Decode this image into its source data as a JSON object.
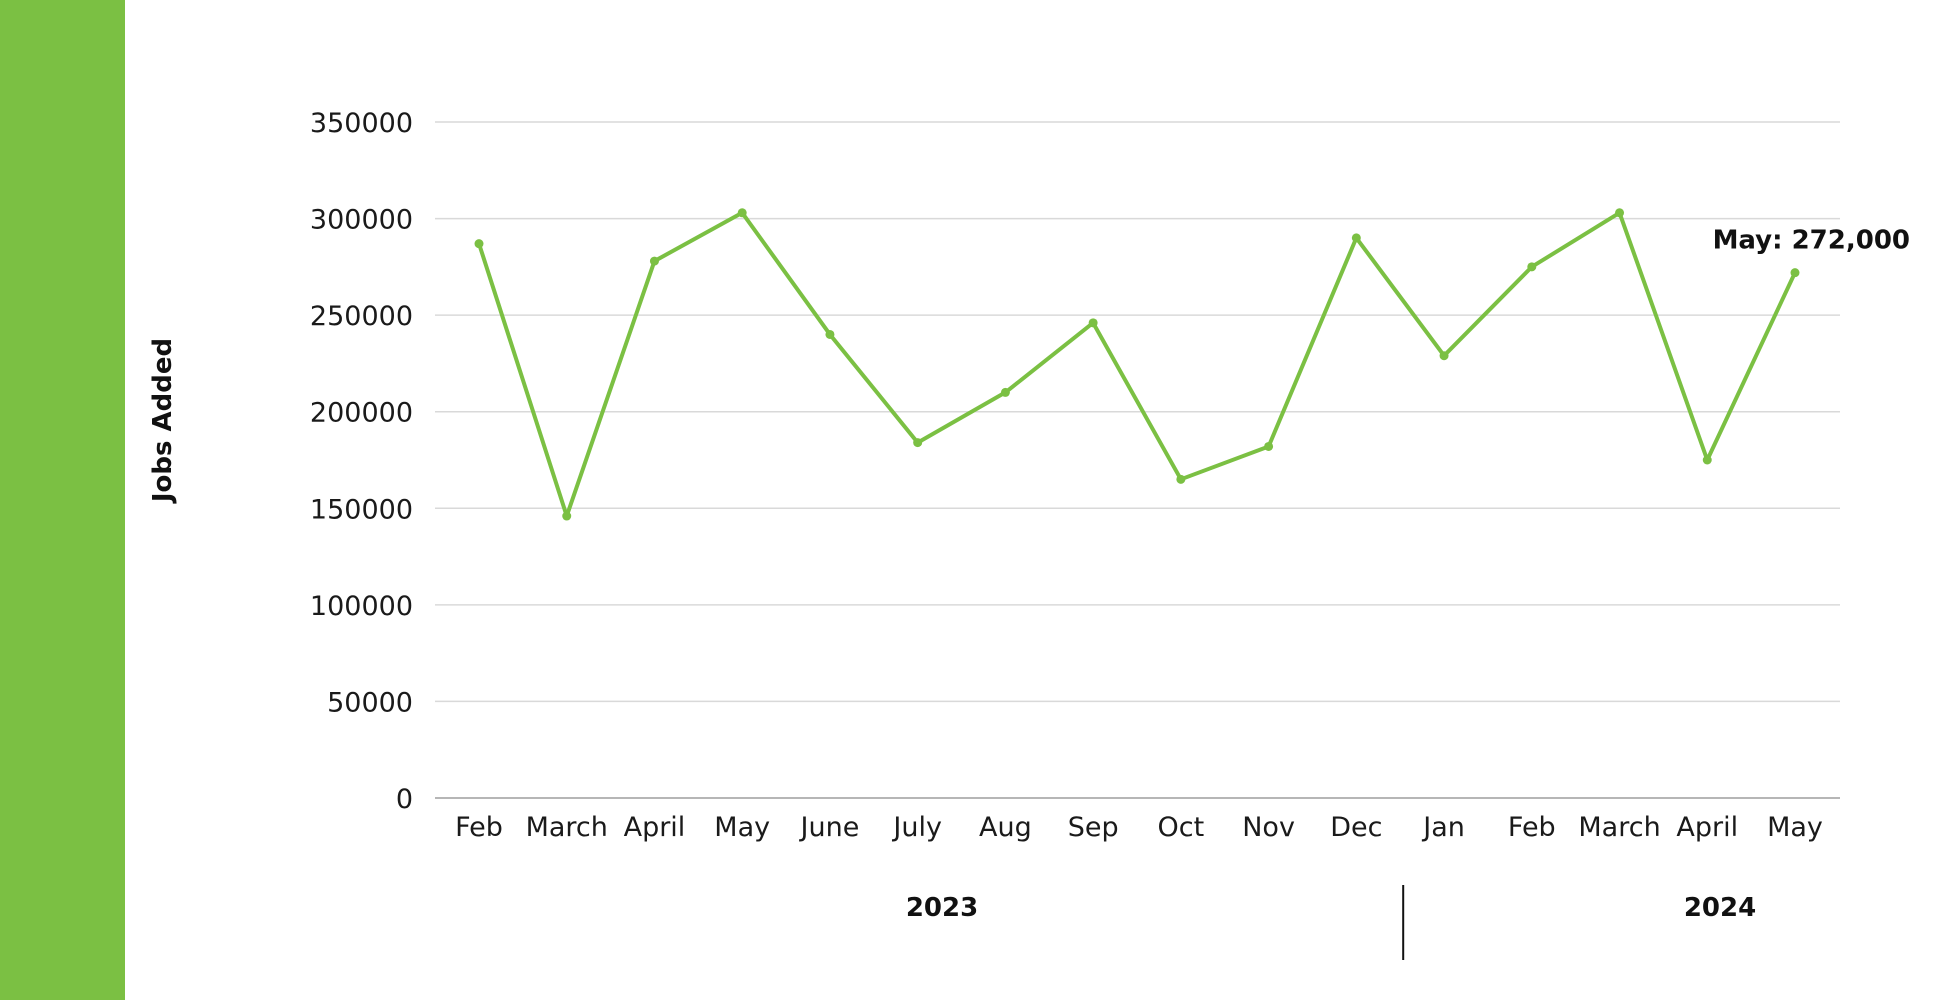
{
  "colors": {
    "accent": "#7bc043",
    "line": "#7bc043",
    "grid": "#d9d9d9",
    "axis": "#9e9e9e"
  },
  "chart_data": {
    "type": "line",
    "title": "",
    "xlabel": "",
    "ylabel": "Jobs Added",
    "ylim": [
      0,
      350000
    ],
    "yticks": [
      0,
      50000,
      100000,
      150000,
      200000,
      250000,
      300000,
      350000
    ],
    "ytick_labels": [
      "0",
      "50000",
      "100000",
      "150000",
      "200000",
      "250000",
      "300000",
      "350000"
    ],
    "grid": true,
    "categories": [
      "Feb",
      "March",
      "April",
      "May",
      "June",
      "July",
      "Aug",
      "Sep",
      "Oct",
      "Nov",
      "Dec",
      "Jan",
      "Feb",
      "March",
      "April",
      "May"
    ],
    "series": [
      {
        "values": [
          287000,
          146000,
          278000,
          303000,
          240000,
          184000,
          210000,
          246000,
          165000,
          182000,
          290000,
          229000,
          275000,
          303000,
          175000,
          272000
        ]
      }
    ],
    "groups": [
      {
        "label": "2023",
        "start_index": 0,
        "end_index": 10
      },
      {
        "label": "2024",
        "start_index": 11,
        "end_index": 15
      }
    ],
    "annotation": {
      "text": "May: 272,000",
      "index": 15
    }
  }
}
